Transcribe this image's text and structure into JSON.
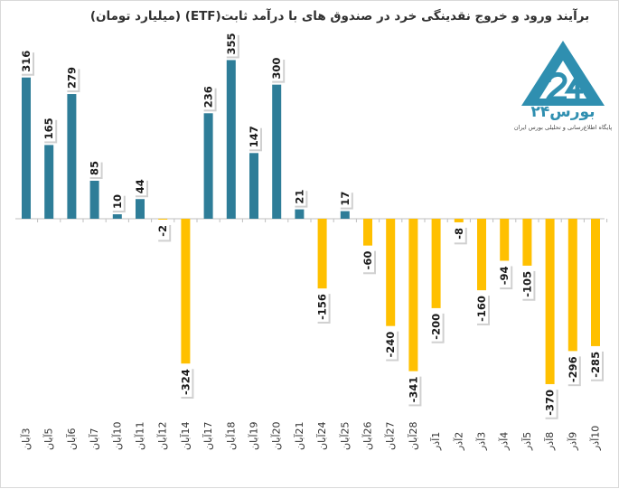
{
  "title": "برآیند ورود و خروج نقدینگی خرد در صندوق های با درآمد ثابت(ETF) (میلیارد تومان)",
  "brand": {
    "name": "بورس۲۴",
    "tagline": "پایگاه اطلاع‌رسانی و تحلیلی بورس ایران"
  },
  "colors": {
    "positive": "#2e7d98",
    "negative": "#ffc000",
    "axis": "#bfbfbf",
    "label": "#1a1a1a"
  },
  "chart_data": {
    "type": "bar",
    "title": "برآیند ورود و خروج نقدینگی خرد در صندوق های با درآمد ثابت(ETF) (میلیارد تومان)",
    "categories": [
      "3آبان",
      "5آبان",
      "6آبان",
      "7آبان",
      "10آبان",
      "11آبان",
      "12آبان",
      "14آبان",
      "17آبان",
      "18آبان",
      "19آبان",
      "20آبان",
      "21آبان",
      "24آبان",
      "25آبان",
      "26آبان",
      "27آبان",
      "28آبان",
      "1آذر",
      "2آذر",
      "3آذر",
      "4آذر",
      "5آذر",
      "8آذر",
      "9آذر",
      "10آذر"
    ],
    "values": [
      316,
      165,
      279,
      85,
      10,
      44,
      -2,
      -324,
      236,
      355,
      147,
      300,
      21,
      -156,
      17,
      -60,
      -240,
      -341,
      -200,
      -8,
      -160,
      -94,
      -105,
      -370,
      -296,
      -285
    ],
    "ylim": [
      -370,
      355
    ],
    "grid": false,
    "legend": "none"
  }
}
